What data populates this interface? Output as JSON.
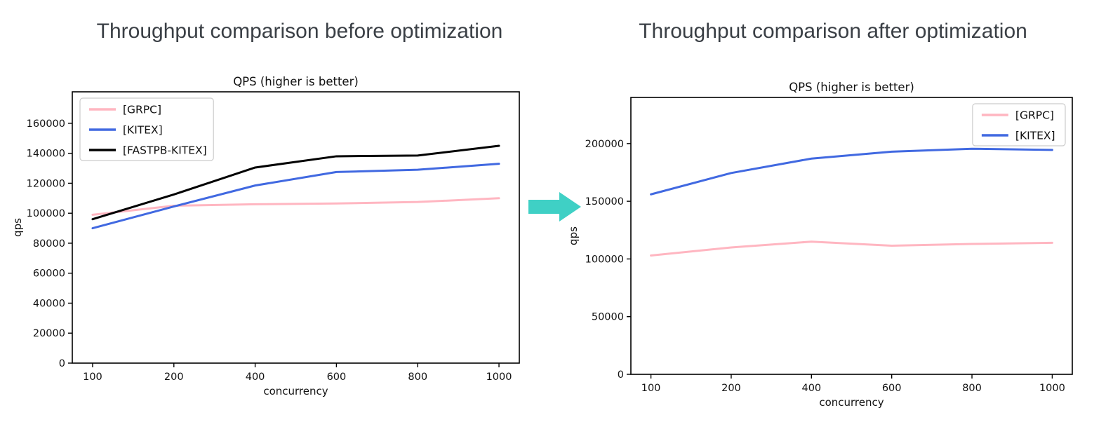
{
  "page": {
    "background": "#ffffff",
    "heading_color": "#3a3f45",
    "chart_text_color": "#111111"
  },
  "panels": [
    {
      "heading": "Throughput comparison before optimization"
    },
    {
      "heading": "Throughput comparison after optimization"
    }
  ],
  "arrow": {
    "name": "right-arrow",
    "color": "#3fd0c5"
  },
  "chart_data": [
    {
      "type": "line",
      "title": "QPS (higher is better)",
      "xlabel": "concurrency",
      "ylabel": "qps",
      "categories": [
        "100",
        "200",
        "400",
        "600",
        "800",
        "1000"
      ],
      "series": [
        {
          "name": "[GRPC]",
          "color": "#ffb6c1",
          "values": [
            99000,
            105000,
            106000,
            106500,
            107500,
            110000
          ]
        },
        {
          "name": "[KITEX]",
          "color": "#4169e1",
          "values": [
            90000,
            104500,
            118500,
            127500,
            129000,
            133000
          ]
        },
        {
          "name": "[FASTPB-KITEX]",
          "color": "#000000",
          "values": [
            96000,
            112500,
            130500,
            138000,
            138500,
            145000
          ]
        }
      ],
      "yticks": [
        0,
        20000,
        40000,
        60000,
        80000,
        100000,
        120000,
        140000,
        160000
      ],
      "ylim": [
        0,
        181000
      ],
      "legend_position": "upper-left",
      "grid": false
    },
    {
      "type": "line",
      "title": "QPS (higher is better)",
      "xlabel": "concurrency",
      "ylabel": "qps",
      "categories": [
        "100",
        "200",
        "400",
        "600",
        "800",
        "1000"
      ],
      "series": [
        {
          "name": "[GRPC]",
          "color": "#ffb6c1",
          "values": [
            103000,
            110000,
            115000,
            111500,
            113000,
            114000
          ]
        },
        {
          "name": "[KITEX]",
          "color": "#4169e1",
          "values": [
            156000,
            174500,
            187000,
            193000,
            195500,
            194500
          ]
        }
      ],
      "yticks": [
        0,
        50000,
        100000,
        150000,
        200000
      ],
      "ylim": [
        0,
        240000
      ],
      "legend_position": "upper-right",
      "grid": false
    }
  ]
}
